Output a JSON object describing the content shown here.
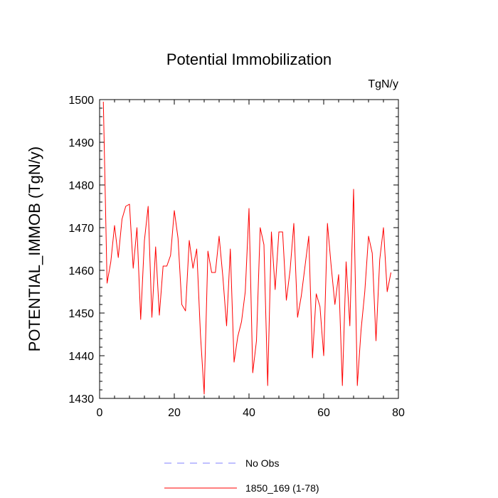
{
  "chart_data": {
    "type": "line",
    "title": "Potential Immobilization",
    "units_label": "TgN/y",
    "ylabel": "POTENTIAL_IMMOB  (TgN/y)",
    "xlabel": "",
    "xlim": [
      0,
      80
    ],
    "ylim": [
      1430,
      1500
    ],
    "xticks": [
      0,
      20,
      40,
      60,
      80
    ],
    "yticks": [
      1430,
      1440,
      1450,
      1460,
      1470,
      1480,
      1490,
      1500
    ],
    "grid": false,
    "legend_placement": "bottom-center",
    "legend": [
      {
        "name": "No Obs",
        "color": "#8080ff",
        "style": "dashed"
      },
      {
        "name": "1850_169 (1-78)",
        "color": "#ff0000",
        "style": "solid"
      }
    ],
    "series": [
      {
        "name": "1850_169 (1-78)",
        "color": "#ff0000",
        "x": [
          1,
          2,
          3,
          4,
          5,
          6,
          7,
          8,
          9,
          10,
          11,
          12,
          13,
          14,
          15,
          16,
          17,
          18,
          19,
          20,
          21,
          22,
          23,
          24,
          25,
          26,
          27,
          28,
          29,
          30,
          31,
          32,
          33,
          34,
          35,
          36,
          37,
          38,
          39,
          40,
          41,
          42,
          43,
          44,
          45,
          46,
          47,
          48,
          49,
          50,
          51,
          52,
          53,
          54,
          55,
          56,
          57,
          58,
          59,
          60,
          61,
          62,
          63,
          64,
          65,
          66,
          67,
          68,
          69,
          70,
          71,
          72,
          73,
          74,
          75,
          76,
          77,
          78
        ],
        "values": [
          1499.5,
          1457,
          1462,
          1470.5,
          1463,
          1472,
          1475,
          1475.5,
          1460.5,
          1470,
          1448.5,
          1467,
          1475,
          1449,
          1465.5,
          1449.5,
          1461,
          1461,
          1463.5,
          1474,
          1467.5,
          1452,
          1450.5,
          1467,
          1460.5,
          1465,
          1445,
          1431,
          1464.5,
          1459.5,
          1459.5,
          1468,
          1458.5,
          1447,
          1465,
          1438.5,
          1444.5,
          1448,
          1455,
          1474.5,
          1436,
          1443.5,
          1470,
          1466,
          1433,
          1469,
          1455.5,
          1469,
          1469,
          1453,
          1460,
          1471,
          1449,
          1454,
          1461,
          1468,
          1439.5,
          1454.5,
          1451.5,
          1440,
          1471,
          1461,
          1452,
          1459,
          1433,
          1462,
          1447,
          1479,
          1433,
          1446,
          1455,
          1468,
          1464,
          1443.5,
          1462.5,
          1470,
          1455,
          1459.5
        ]
      }
    ]
  }
}
